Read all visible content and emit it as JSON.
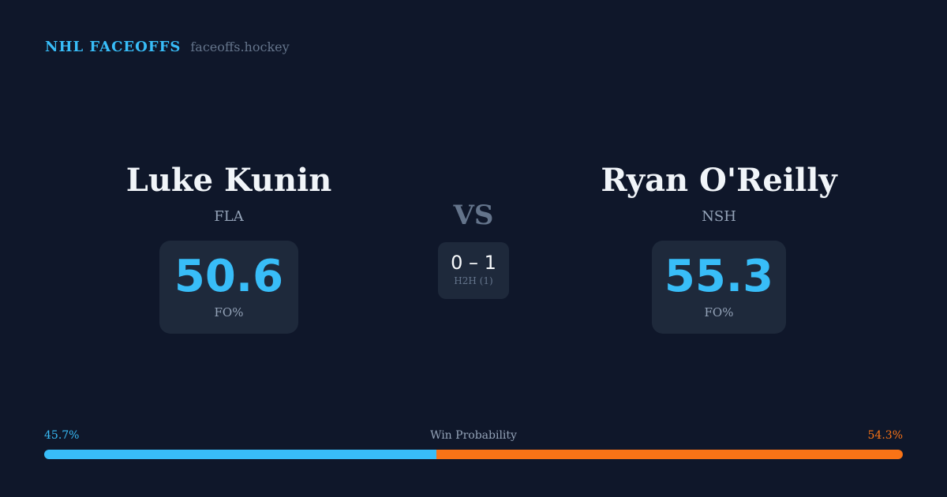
{
  "brand": {
    "title": "NHL FACEOFFS",
    "domain": "faceoffs.hockey"
  },
  "left": {
    "name": "Luke Kunin",
    "team": "FLA",
    "value": "50.6",
    "label": "FO%"
  },
  "right": {
    "name": "Ryan O'Reilly",
    "team": "NSH",
    "value": "55.3",
    "label": "FO%"
  },
  "vs": "VS",
  "h2h": {
    "score": "0 – 1",
    "label": "H2H (1)"
  },
  "win_probability": {
    "label": "Win Probability",
    "left_text": "45.7%",
    "right_text": "54.3%",
    "left": 45.7,
    "right": 54.3,
    "left_color": "#38bdf8",
    "right_color": "#f97316"
  }
}
